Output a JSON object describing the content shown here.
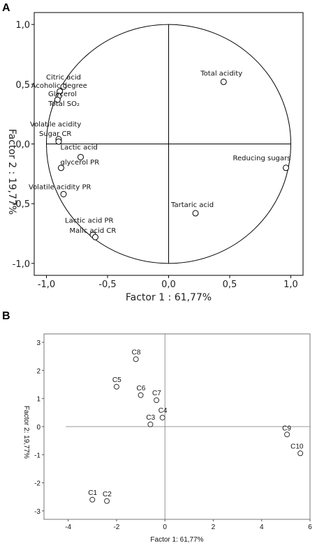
{
  "chart_data": [
    {
      "panel_label": "A",
      "type": "scatter",
      "subtype": "correlation-circle",
      "xlabel": "Factor 1 : 61,77%",
      "ylabel": "Factor 2 : 19,77%",
      "xlim": [
        -1.1,
        1.1
      ],
      "ylim": [
        -1.1,
        1.1
      ],
      "xticks": [
        "-1,0",
        "-0,5",
        "0,0",
        "0,5",
        "1,0"
      ],
      "yticks": [
        "1,0",
        "0,5",
        "0,0",
        "-0,5",
        "-1,0"
      ],
      "points": [
        {
          "label": "Total acidity",
          "x": 0.45,
          "y": 0.52
        },
        {
          "label": "Citric acid",
          "x": -0.86,
          "y": 0.48
        },
        {
          "label": "Acoholic degree",
          "x": -0.89,
          "y": 0.44
        },
        {
          "label": "Glycerol",
          "x": -0.9,
          "y": 0.4
        },
        {
          "label": "Total SO₂",
          "x": -0.91,
          "y": 0.37
        },
        {
          "label": "Volatile acidity",
          "x": -0.9,
          "y": 0.04
        },
        {
          "label": "Sugar CR",
          "x": -0.9,
          "y": 0.02
        },
        {
          "label": "Lactic acid",
          "x": -0.72,
          "y": -0.11
        },
        {
          "label": "glycerol PR",
          "x": -0.88,
          "y": -0.2
        },
        {
          "label": "Reducing sugars",
          "x": 0.96,
          "y": -0.2
        },
        {
          "label": "Volatile acidity PR",
          "x": -0.86,
          "y": -0.42
        },
        {
          "label": "Tartaric acid",
          "x": 0.22,
          "y": -0.58
        },
        {
          "label": "Lactic acid PR",
          "x": -0.62,
          "y": -0.76
        },
        {
          "label": "Malic acid CR",
          "x": -0.6,
          "y": -0.78
        }
      ]
    },
    {
      "panel_label": "B",
      "type": "scatter",
      "xlabel": "Factor 1: 61,77%",
      "ylabel": "Factor 2: 19,77%",
      "xlim": [
        -5,
        6
      ],
      "ylim": [
        -3.3,
        3.3
      ],
      "xticks": [
        "-4",
        "-2",
        "0",
        "2",
        "4",
        "6"
      ],
      "yticks": [
        "3",
        "2",
        "1",
        "0",
        "-1",
        "-2",
        "-3"
      ],
      "points": [
        {
          "label": "C1",
          "x": -3.0,
          "y": -2.6
        },
        {
          "label": "C2",
          "x": -2.4,
          "y": -2.65
        },
        {
          "label": "C3",
          "x": -0.6,
          "y": 0.08
        },
        {
          "label": "C4",
          "x": -0.1,
          "y": 0.32
        },
        {
          "label": "C5",
          "x": -2.0,
          "y": 1.42
        },
        {
          "label": "C6",
          "x": -1.0,
          "y": 1.12
        },
        {
          "label": "C7",
          "x": -0.35,
          "y": 0.94
        },
        {
          "label": "C8",
          "x": -1.2,
          "y": 2.4
        },
        {
          "label": "C9",
          "x": 5.05,
          "y": -0.28
        },
        {
          "label": "C10",
          "x": 5.6,
          "y": -0.95
        }
      ]
    }
  ]
}
